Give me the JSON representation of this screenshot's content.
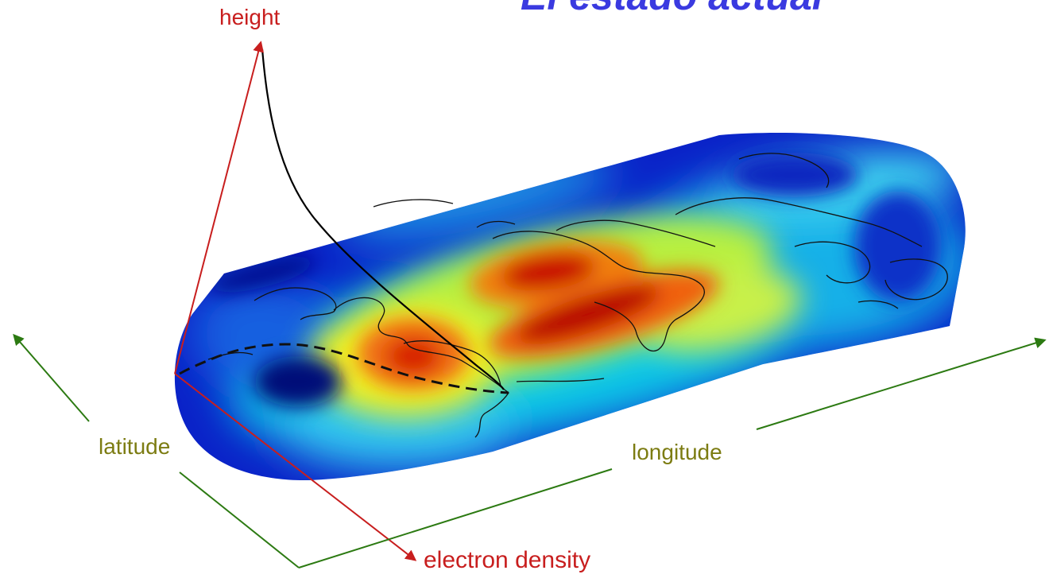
{
  "title": "El estado actual",
  "axes": {
    "height": "height",
    "latitude": "latitude",
    "longitude": "longitude",
    "electron_density": "electron density"
  },
  "colors": {
    "title": "#3a3ae0",
    "vertical_axes": "#c81e1e",
    "horizontal_axes": "#2c7a12",
    "horizontal_axis_labels": "#7c7c12",
    "density_low": "#0010a0",
    "density_mid": "#10e0e0",
    "density_high": "#c00000"
  }
}
